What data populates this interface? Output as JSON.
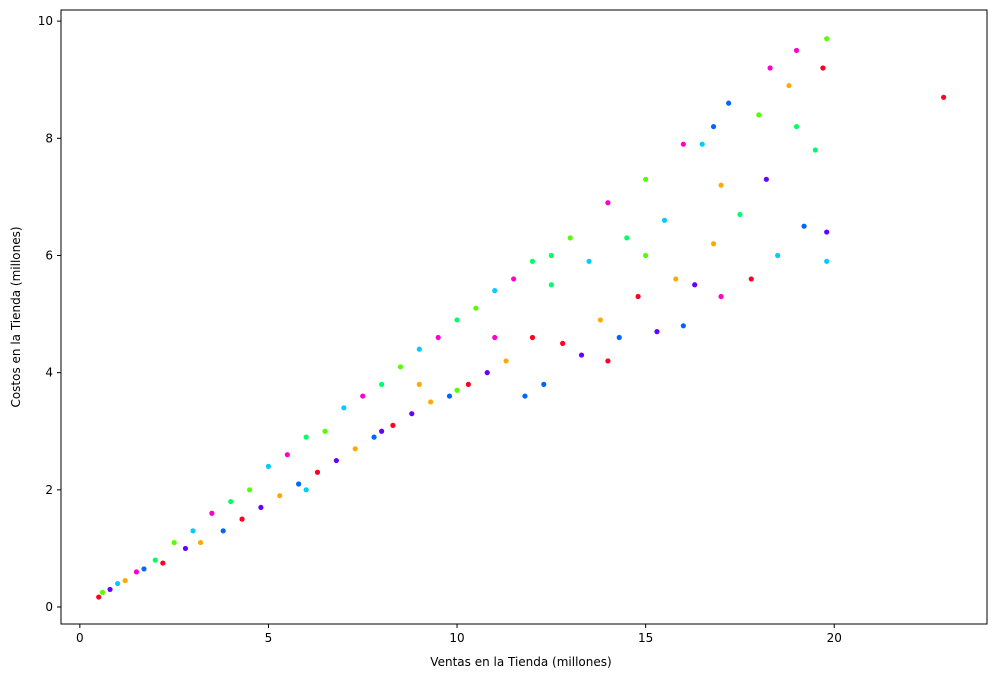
{
  "chart_data": {
    "type": "scatter",
    "xlabel": "Ventas en la Tienda (millones)",
    "ylabel": "Costos en la Tienda (millones)",
    "xlim": [
      -0.5,
      24.05
    ],
    "ylim": [
      -0.29,
      10.19
    ],
    "xticks": [
      0,
      5,
      10,
      15,
      20
    ],
    "yticks": [
      0,
      2,
      4,
      6,
      8,
      10
    ],
    "palette": [
      "#ff0022",
      "#55ff00",
      "#6600ff",
      "#00ccff",
      "#ffaa00",
      "#ff00cc",
      "#0066ff",
      "#00ff66"
    ],
    "x": [
      0.5,
      0.6,
      0.8,
      1,
      1.2,
      1.5,
      1.7,
      2,
      2.2,
      2.5,
      2.8,
      3,
      3.2,
      3.5,
      3.8,
      4,
      4.3,
      4.5,
      4.8,
      5,
      5.3,
      5.5,
      5.8,
      6,
      6.3,
      6.5,
      6.8,
      7,
      7.3,
      7.5,
      7.8,
      8,
      8.3,
      8.5,
      8.8,
      9,
      9.3,
      9.5,
      9.8,
      10,
      10.3,
      10.5,
      10.8,
      11,
      11.3,
      11.5,
      11.8,
      12,
      12,
      10,
      8,
      6,
      9,
      11,
      12.3,
      12.5,
      12.8,
      13,
      13.3,
      13.5,
      13.8,
      14,
      14.3,
      14.5,
      14.8,
      15,
      15.3,
      15.5,
      15.8,
      16,
      16,
      12.5,
      14,
      15,
      16.3,
      16.5,
      16.8,
      17,
      17.2,
      17.5,
      17.8,
      18,
      18.2,
      18.5,
      18.8,
      19,
      19.2,
      19.5,
      19.7,
      19.8,
      19.8,
      19.8,
      17,
      18.3,
      16.8,
      19,
      22.9
    ],
    "values": [
      0.17,
      0.25,
      0.3,
      0.4,
      0.45,
      0.6,
      0.65,
      0.8,
      0.75,
      1.1,
      1.0,
      1.3,
      1.1,
      1.6,
      1.3,
      1.8,
      1.5,
      2.0,
      1.7,
      2.4,
      1.9,
      2.6,
      2.1,
      2.9,
      2.3,
      3.0,
      2.5,
      3.4,
      2.7,
      3.6,
      2.9,
      3.8,
      3.1,
      4.1,
      3.3,
      4.4,
      3.5,
      4.6,
      3.6,
      4.9,
      3.8,
      5.1,
      4.0,
      5.4,
      4.2,
      5.6,
      3.6,
      5.9,
      4.6,
      3.7,
      3.0,
      2.0,
      3.8,
      4.6,
      3.8,
      5.5,
      4.5,
      6.3,
      4.3,
      5.9,
      4.9,
      6.9,
      4.6,
      6.3,
      5.3,
      7.3,
      4.7,
      6.6,
      5.6,
      7.9,
      4.8,
      6.0,
      4.2,
      6.0,
      5.5,
      7.9,
      6.2,
      5.3,
      8.6,
      6.7,
      5.6,
      8.4,
      7.3,
      6.0,
      8.9,
      9.5,
      6.5,
      7.8,
      9.2,
      9.7,
      6.4,
      5.9,
      7.2,
      9.2,
      8.2,
      8.2,
      8.7
    ]
  }
}
